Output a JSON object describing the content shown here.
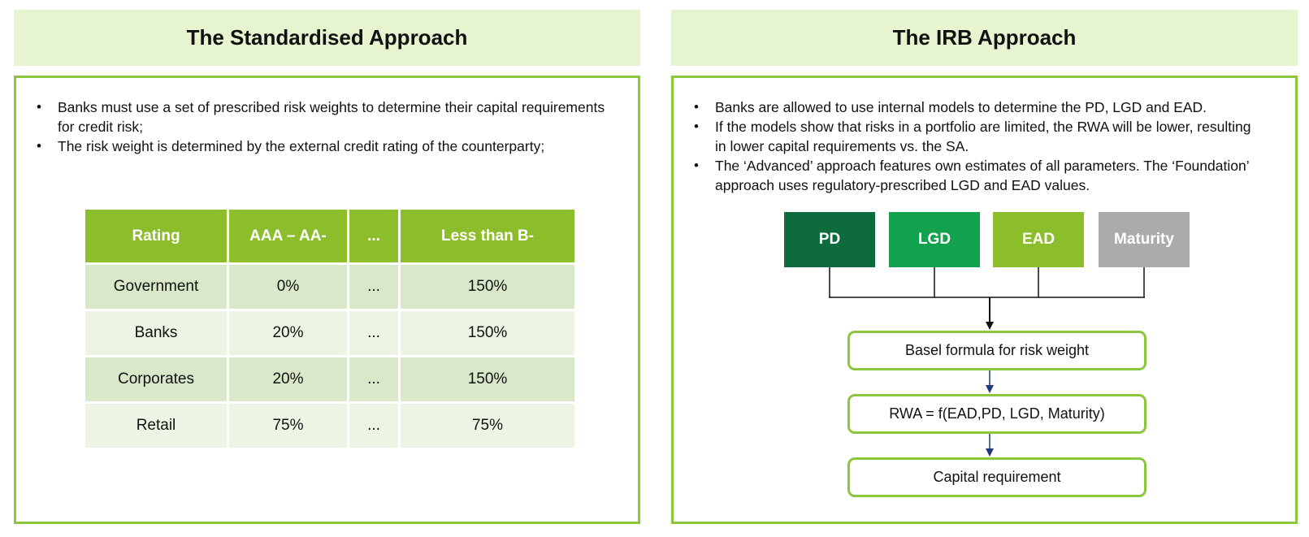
{
  "left_panel": {
    "title": "The Standardised Approach",
    "bullets": [
      "Banks must use a set of prescribed risk weights to determine their capital requirements for credit risk;",
      "The risk weight is determined by the external credit rating of the counterparty;"
    ],
    "table": {
      "headers": [
        "Rating",
        "AAA – AA-",
        "...",
        "Less than B-"
      ],
      "rows": [
        [
          "Government",
          "0%",
          "...",
          "150%"
        ],
        [
          "Banks",
          "20%",
          "...",
          "150%"
        ],
        [
          "Corporates",
          "20%",
          "...",
          "150%"
        ],
        [
          "Retail",
          "75%",
          "...",
          "75%"
        ]
      ]
    }
  },
  "right_panel": {
    "title": "The IRB Approach",
    "bullets": [
      "Banks are allowed to use internal models to determine the PD, LGD and EAD.",
      "If the models show that risks in a portfolio are limited, the RWA will be lower, resulting in lower capital requirements vs. the SA.",
      "The ‘Advanced’ approach features own estimates of all parameters. The ‘Foundation’ approach uses regulatory-prescribed LGD and EAD values."
    ],
    "parameters": [
      "PD",
      "LGD",
      "EAD",
      "Maturity"
    ],
    "steps": [
      "Basel formula for risk weight",
      "RWA = f(EAD,PD, LGD, Maturity)",
      "Capital requirement"
    ],
    "colors": {
      "pd": "#0d6b3c",
      "lgd": "#12a24e",
      "ead": "#8cbd2a",
      "maturity": "#ababab",
      "accent": "#8cc63f",
      "arrow_dark": "#1f3a7a"
    }
  }
}
